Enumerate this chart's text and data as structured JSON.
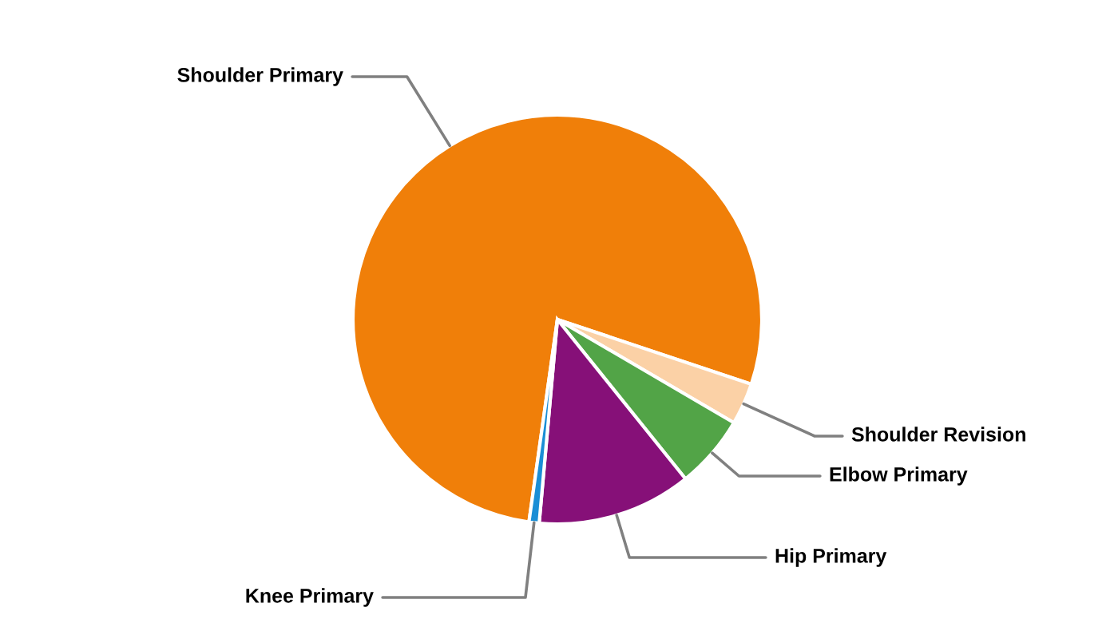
{
  "chart_data": {
    "type": "pie",
    "categories": [
      "Shoulder Primary",
      "Shoulder Revision",
      "Elbow Primary",
      "Hip Primary",
      "Knee Primary"
    ],
    "values": [
      77.9,
      3.3,
      5.8,
      12.2,
      0.8
    ],
    "colors": [
      "#f07f09",
      "#fbd1a6",
      "#52a447",
      "#861078",
      "#1a8ed6"
    ],
    "legend": false
  }
}
